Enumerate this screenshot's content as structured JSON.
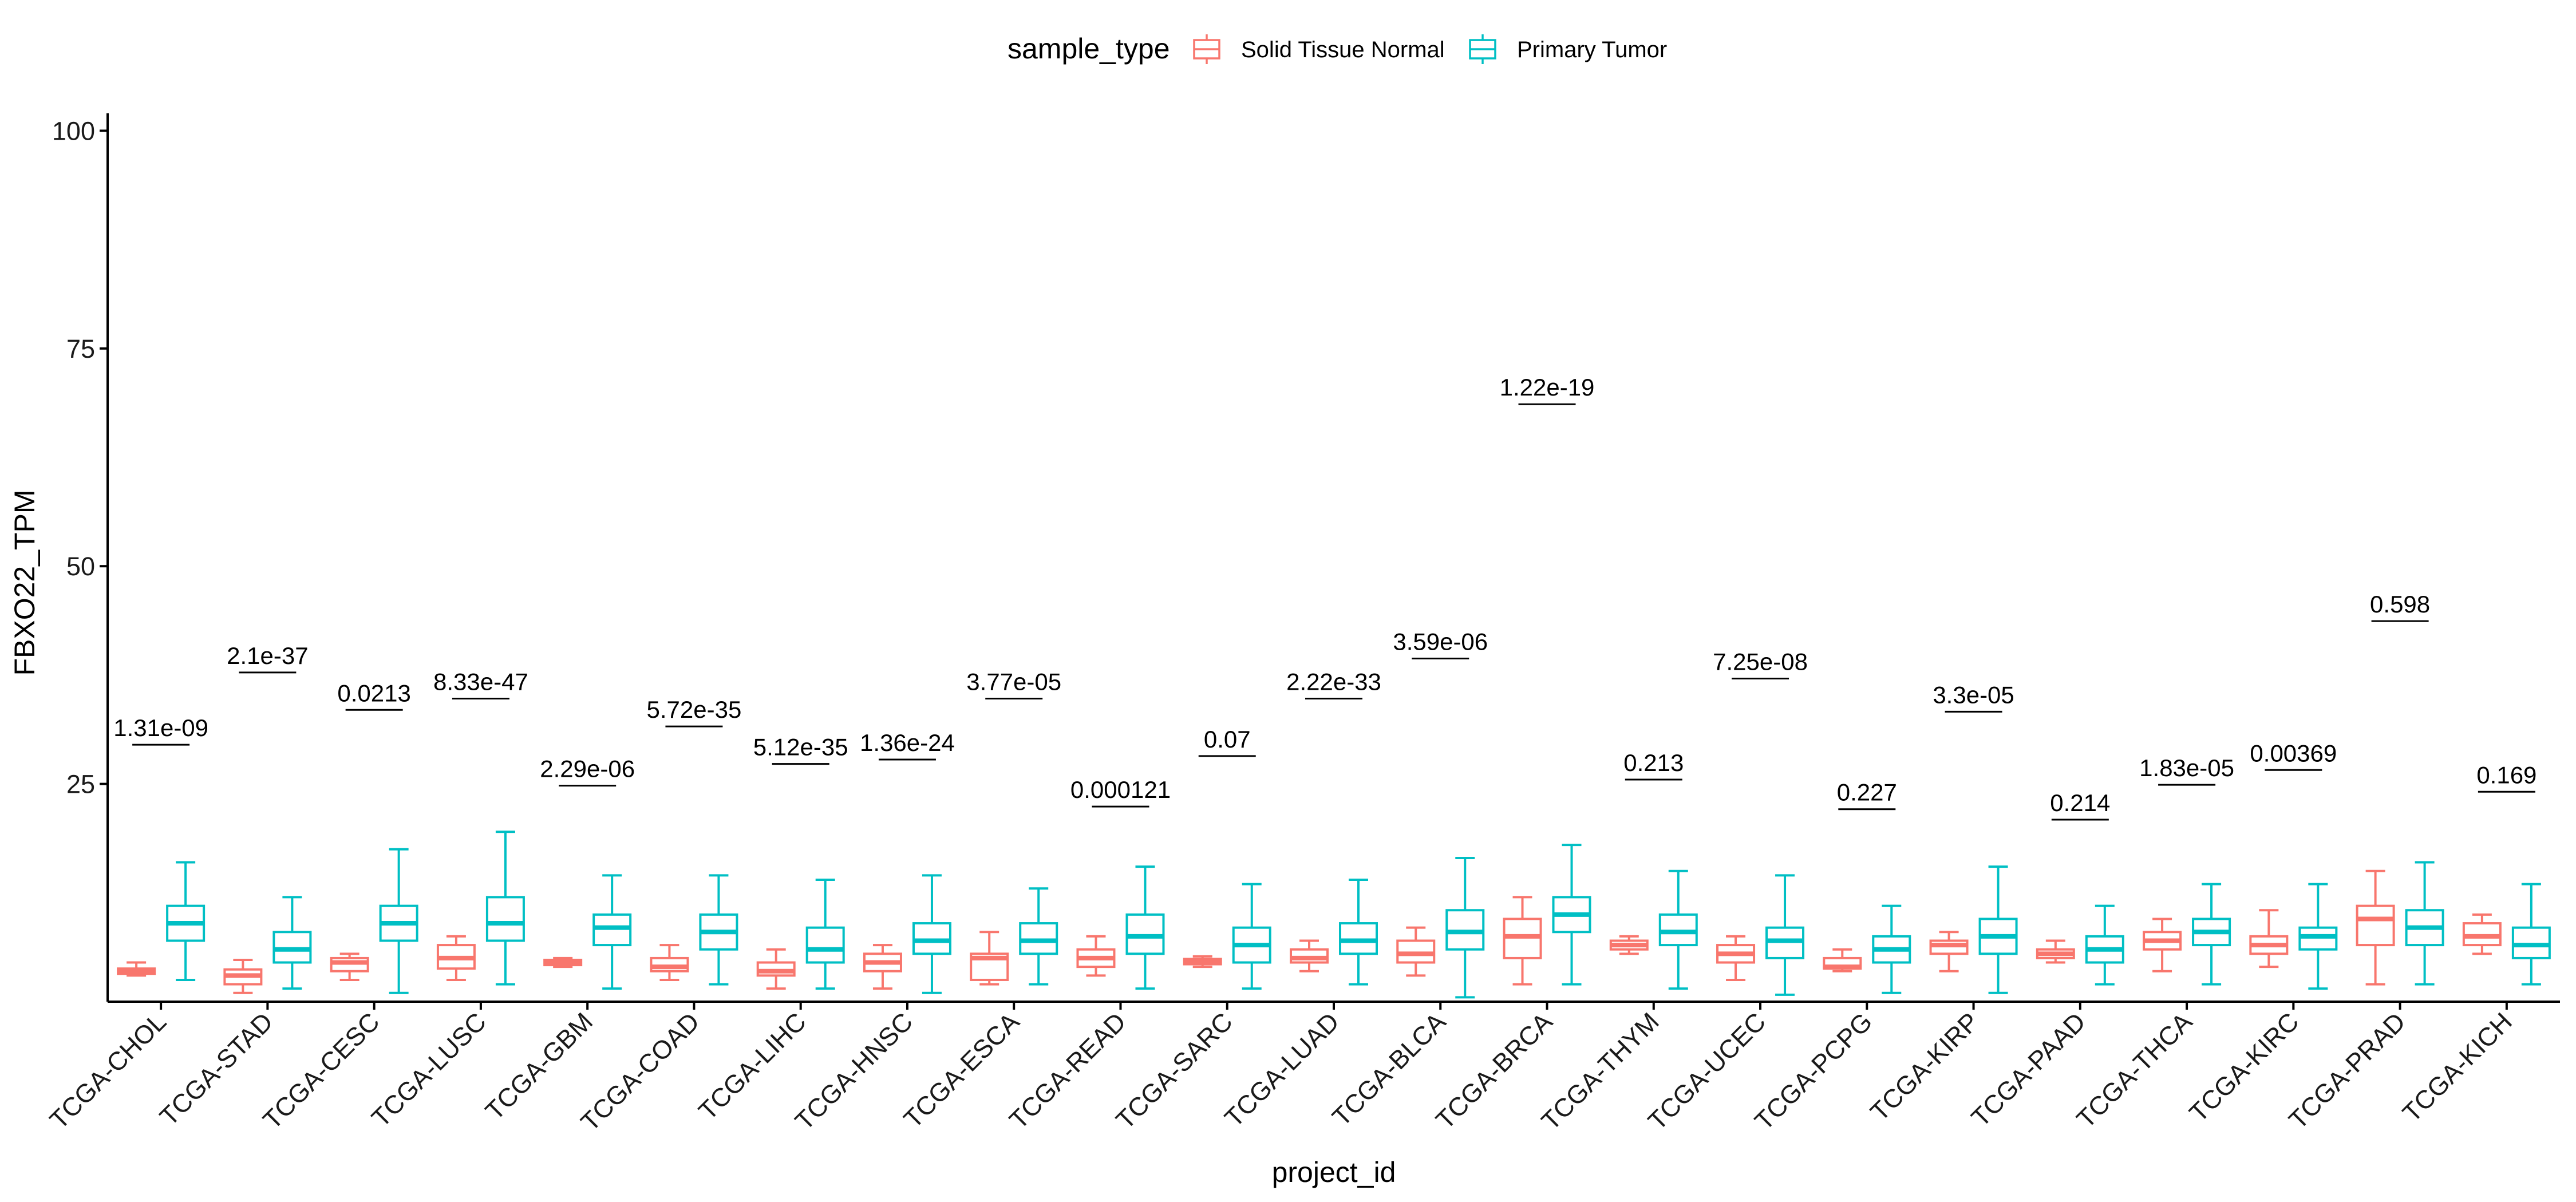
{
  "chart_data": {
    "type": "boxplot",
    "xlabel": "project_id",
    "ylabel": "FBXO22_TPM",
    "ylim": [
      0,
      102
    ],
    "yticks": [
      25,
      50,
      75,
      100
    ],
    "grid": false,
    "legend": {
      "title": "sample_type",
      "position": "top",
      "entries": [
        {
          "name": "Solid Tissue Normal",
          "color": "#F8766D"
        },
        {
          "name": "Primary Tumor",
          "color": "#00BFC4"
        }
      ]
    },
    "groups": [
      {
        "project": "TCGA-CHOL",
        "pvalue": "1.31e-09",
        "pvalue_y": 29.5,
        "normal": {
          "min": 3.0,
          "q1": 3.2,
          "median": 3.5,
          "q3": 3.8,
          "max": 4.5
        },
        "tumor": {
          "min": 2.5,
          "q1": 7.0,
          "median": 9.0,
          "q3": 11.0,
          "max": 16.0
        }
      },
      {
        "project": "TCGA-STAD",
        "pvalue": "2.1e-37",
        "pvalue_y": 37.8,
        "normal": {
          "min": 1.0,
          "q1": 2.0,
          "median": 3.0,
          "q3": 3.7,
          "max": 4.8
        },
        "tumor": {
          "min": 1.5,
          "q1": 4.5,
          "median": 6.0,
          "q3": 8.0,
          "max": 12.0
        }
      },
      {
        "project": "TCGA-CESC",
        "pvalue": "0.0213",
        "pvalue_y": 33.5,
        "normal": {
          "min": 2.5,
          "q1": 3.5,
          "median": 4.5,
          "q3": 5.0,
          "max": 5.5
        },
        "tumor": {
          "min": 1.0,
          "q1": 7.0,
          "median": 9.0,
          "q3": 11.0,
          "max": 17.5
        }
      },
      {
        "project": "TCGA-LUSC",
        "pvalue": "8.33e-47",
        "pvalue_y": 34.8,
        "normal": {
          "min": 2.5,
          "q1": 3.8,
          "median": 5.0,
          "q3": 6.5,
          "max": 7.5
        },
        "tumor": {
          "min": 2.0,
          "q1": 7.0,
          "median": 9.0,
          "q3": 12.0,
          "max": 19.5
        }
      },
      {
        "project": "TCGA-GBM",
        "pvalue": "2.29e-06",
        "pvalue_y": 24.8,
        "normal": {
          "min": 4.0,
          "q1": 4.2,
          "median": 4.5,
          "q3": 4.8,
          "max": 5.0
        },
        "tumor": {
          "min": 1.5,
          "q1": 6.5,
          "median": 8.5,
          "q3": 10.0,
          "max": 14.5
        }
      },
      {
        "project": "TCGA-COAD",
        "pvalue": "5.72e-35",
        "pvalue_y": 31.6,
        "normal": {
          "min": 2.5,
          "q1": 3.5,
          "median": 4.0,
          "q3": 5.0,
          "max": 6.5
        },
        "tumor": {
          "min": 2.0,
          "q1": 6.0,
          "median": 8.0,
          "q3": 10.0,
          "max": 14.5
        }
      },
      {
        "project": "TCGA-LIHC",
        "pvalue": "5.12e-35",
        "pvalue_y": 27.3,
        "normal": {
          "min": 1.5,
          "q1": 3.0,
          "median": 3.5,
          "q3": 4.5,
          "max": 6.0
        },
        "tumor": {
          "min": 1.5,
          "q1": 4.5,
          "median": 6.0,
          "q3": 8.5,
          "max": 14.0
        }
      },
      {
        "project": "TCGA-HNSC",
        "pvalue": "1.36e-24",
        "pvalue_y": 27.8,
        "normal": {
          "min": 1.5,
          "q1": 3.5,
          "median": 4.5,
          "q3": 5.5,
          "max": 6.5
        },
        "tumor": {
          "min": 1.0,
          "q1": 5.5,
          "median": 7.0,
          "q3": 9.0,
          "max": 14.5
        }
      },
      {
        "project": "TCGA-ESCA",
        "pvalue": "3.77e-05",
        "pvalue_y": 34.8,
        "normal": {
          "min": 2.0,
          "q1": 2.5,
          "median": 5.0,
          "q3": 5.5,
          "max": 8.0
        },
        "tumor": {
          "min": 2.0,
          "q1": 5.5,
          "median": 7.0,
          "q3": 9.0,
          "max": 13.0
        }
      },
      {
        "project": "TCGA-READ",
        "pvalue": "0.000121",
        "pvalue_y": 22.4,
        "normal": {
          "min": 3.0,
          "q1": 4.0,
          "median": 5.0,
          "q3": 6.0,
          "max": 7.5
        },
        "tumor": {
          "min": 1.5,
          "q1": 5.5,
          "median": 7.5,
          "q3": 10.0,
          "max": 15.5
        }
      },
      {
        "project": "TCGA-SARC",
        "pvalue": "0.07",
        "pvalue_y": 28.2,
        "normal": {
          "min": 4.0,
          "q1": 4.3,
          "median": 4.6,
          "q3": 4.9,
          "max": 5.2
        },
        "tumor": {
          "min": 1.5,
          "q1": 4.5,
          "median": 6.5,
          "q3": 8.5,
          "max": 13.5
        }
      },
      {
        "project": "TCGA-LUAD",
        "pvalue": "2.22e-33",
        "pvalue_y": 34.8,
        "normal": {
          "min": 3.5,
          "q1": 4.5,
          "median": 5.0,
          "q3": 6.0,
          "max": 7.0
        },
        "tumor": {
          "min": 2.0,
          "q1": 5.5,
          "median": 7.0,
          "q3": 9.0,
          "max": 14.0
        }
      },
      {
        "project": "TCGA-BLCA",
        "pvalue": "3.59e-06",
        "pvalue_y": 39.4,
        "normal": {
          "min": 3.0,
          "q1": 4.5,
          "median": 5.5,
          "q3": 7.0,
          "max": 8.5
        },
        "tumor": {
          "min": 0.5,
          "q1": 6.0,
          "median": 8.0,
          "q3": 10.5,
          "max": 16.5
        }
      },
      {
        "project": "TCGA-BRCA",
        "pvalue": "1.22e-19",
        "pvalue_y": 68.6,
        "normal": {
          "min": 2.0,
          "q1": 5.0,
          "median": 7.5,
          "q3": 9.5,
          "max": 12.0
        },
        "tumor": {
          "min": 2.0,
          "q1": 8.0,
          "median": 10.0,
          "q3": 12.0,
          "max": 18.0
        }
      },
      {
        "project": "TCGA-THYM",
        "pvalue": "0.213",
        "pvalue_y": 25.5,
        "normal": {
          "min": 5.5,
          "q1": 6.0,
          "median": 6.5,
          "q3": 7.0,
          "max": 7.5
        },
        "tumor": {
          "min": 1.5,
          "q1": 6.5,
          "median": 8.0,
          "q3": 10.0,
          "max": 15.0
        }
      },
      {
        "project": "TCGA-UCEC",
        "pvalue": "7.25e-08",
        "pvalue_y": 37.1,
        "normal": {
          "min": 2.5,
          "q1": 4.5,
          "median": 5.5,
          "q3": 6.5,
          "max": 7.5
        },
        "tumor": {
          "min": 0.8,
          "q1": 5.0,
          "median": 7.0,
          "q3": 8.5,
          "max": 14.5
        }
      },
      {
        "project": "TCGA-PCPG",
        "pvalue": "0.227",
        "pvalue_y": 22.1,
        "normal": {
          "min": 3.5,
          "q1": 3.8,
          "median": 4.0,
          "q3": 5.0,
          "max": 6.0
        },
        "tumor": {
          "min": 1.0,
          "q1": 4.5,
          "median": 6.0,
          "q3": 7.5,
          "max": 11.0
        }
      },
      {
        "project": "TCGA-KIRP",
        "pvalue": "3.3e-05",
        "pvalue_y": 33.3,
        "normal": {
          "min": 3.5,
          "q1": 5.5,
          "median": 6.5,
          "q3": 7.0,
          "max": 8.0
        },
        "tumor": {
          "min": 1.0,
          "q1": 5.5,
          "median": 7.5,
          "q3": 9.5,
          "max": 15.5
        }
      },
      {
        "project": "TCGA-PAAD",
        "pvalue": "0.214",
        "pvalue_y": 20.9,
        "normal": {
          "min": 4.5,
          "q1": 5.0,
          "median": 5.5,
          "q3": 6.0,
          "max": 7.0
        },
        "tumor": {
          "min": 2.0,
          "q1": 4.5,
          "median": 6.0,
          "q3": 7.5,
          "max": 11.0
        }
      },
      {
        "project": "TCGA-THCA",
        "pvalue": "1.83e-05",
        "pvalue_y": 24.9,
        "normal": {
          "min": 3.5,
          "q1": 6.0,
          "median": 7.0,
          "q3": 8.0,
          "max": 9.5
        },
        "tumor": {
          "min": 2.0,
          "q1": 6.5,
          "median": 8.0,
          "q3": 9.5,
          "max": 13.5
        }
      },
      {
        "project": "TCGA-KIRC",
        "pvalue": "0.00369",
        "pvalue_y": 26.6,
        "normal": {
          "min": 4.0,
          "q1": 5.5,
          "median": 6.5,
          "q3": 7.5,
          "max": 10.5
        },
        "tumor": {
          "min": 1.5,
          "q1": 6.0,
          "median": 7.5,
          "q3": 8.5,
          "max": 13.5
        }
      },
      {
        "project": "TCGA-PRAD",
        "pvalue": "0.598",
        "pvalue_y": 43.7,
        "normal": {
          "min": 2.0,
          "q1": 6.5,
          "median": 9.5,
          "q3": 11.0,
          "max": 15.0
        },
        "tumor": {
          "min": 2.0,
          "q1": 6.5,
          "median": 8.5,
          "q3": 10.5,
          "max": 16.0
        }
      },
      {
        "project": "TCGA-KICH",
        "pvalue": "0.169",
        "pvalue_y": 24.1,
        "normal": {
          "min": 5.5,
          "q1": 6.5,
          "median": 7.5,
          "q3": 9.0,
          "max": 10.0
        },
        "tumor": {
          "min": 2.0,
          "q1": 5.0,
          "median": 6.5,
          "q3": 8.5,
          "max": 13.5
        }
      }
    ]
  }
}
